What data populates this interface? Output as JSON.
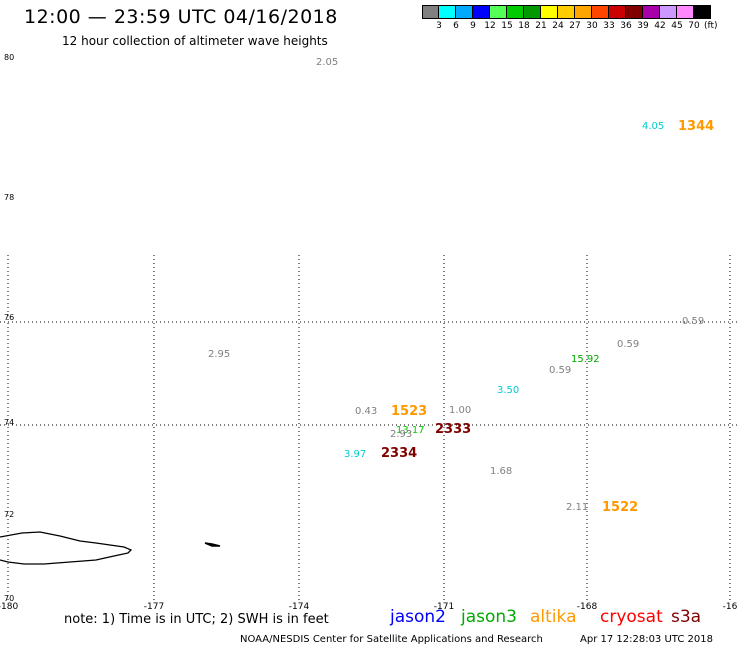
{
  "header": {
    "title": "12:00 — 23:59 UTC 04/16/2018",
    "subtitle": "12 hour collection of altimeter wave heights"
  },
  "colorbar": {
    "swatches": [
      "#808080",
      "#00ffff",
      "#00aaff",
      "#0000ff",
      "#55ff55",
      "#00cc00",
      "#009900",
      "#ffff00",
      "#ffcc00",
      "#ffa500",
      "#ff4500",
      "#cc0000",
      "#800000",
      "#aa00aa",
      "#cc99ff",
      "#ff88ff",
      "#000000"
    ],
    "labels": [
      "3",
      "6",
      "9",
      "12",
      "15",
      "18",
      "21",
      "24",
      "27",
      "30",
      "33",
      "36",
      "39",
      "42",
      "45",
      "70"
    ],
    "unit": "(ft)"
  },
  "map": {
    "lon_ticks": [
      "-180",
      "-177",
      "-174",
      "-171",
      "-168",
      "-16"
    ],
    "lat_ticks": [
      "80",
      "78",
      "76",
      "74",
      "72",
      "70"
    ],
    "observations": [
      {
        "text": "2.05",
        "color": "#808080",
        "big": false
      },
      {
        "text": "4.05",
        "color": "#00cccc",
        "big": false
      },
      {
        "text": "1344",
        "color": "#ff9900",
        "big": true
      },
      {
        "text": "0.59",
        "color": "#808080",
        "big": false
      },
      {
        "text": "0.59",
        "color": "#808080",
        "big": false
      },
      {
        "text": "2.95",
        "color": "#808080",
        "big": false
      },
      {
        "text": "15.92",
        "color": "#00aa00",
        "big": false
      },
      {
        "text": "0.59",
        "color": "#808080",
        "big": false
      },
      {
        "text": "3.50",
        "color": "#00cccc",
        "big": false
      },
      {
        "text": "0.43",
        "color": "#808080",
        "big": false
      },
      {
        "text": "1523",
        "color": "#ff9900",
        "big": true
      },
      {
        "text": "1.00",
        "color": "#808080",
        "big": false
      },
      {
        "text": "13.17",
        "color": "#00cc00",
        "big": false
      },
      {
        "text": "2333",
        "color": "#800000",
        "big": true
      },
      {
        "text": "2.93",
        "color": "#808080",
        "big": false
      },
      {
        "text": "3.97",
        "color": "#00cccc",
        "big": false
      },
      {
        "text": "2334",
        "color": "#800000",
        "big": true
      },
      {
        "text": "1.68",
        "color": "#808080",
        "big": false
      },
      {
        "text": "2.11",
        "color": "#808080",
        "big": false
      },
      {
        "text": "1522",
        "color": "#ff9900",
        "big": true
      }
    ]
  },
  "footer": {
    "note": "note: 1) Time is in UTC; 2) SWH is in feet",
    "legend": [
      {
        "label": "jason2",
        "color": "#0000ff"
      },
      {
        "label": "jason3",
        "color": "#00aa00"
      },
      {
        "label": "altika",
        "color": "#ff9900"
      },
      {
        "label": "cryosat",
        "color": "#ff0000"
      },
      {
        "label": "s3a",
        "color": "#800000"
      }
    ],
    "credit": "NOAA/NESDIS Center for Satellite Applications and Research",
    "timestamp": "Apr 17 12:28:03 UTC 2018"
  }
}
